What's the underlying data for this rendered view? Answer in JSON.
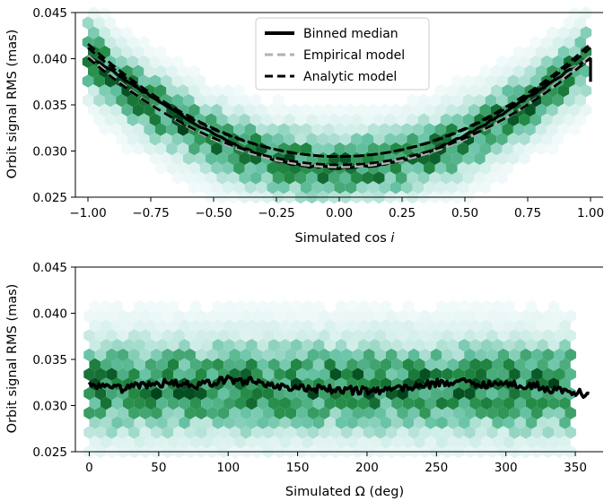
{
  "chart_data": [
    {
      "type": "hexbin",
      "xlabel_prefix": "Simulated cos ",
      "xlabel_var": "i",
      "ylabel": "Orbit signal RMS (mas)",
      "xlim": [
        -1.05,
        1.05
      ],
      "ylim": [
        0.025,
        0.045
      ],
      "xticks": [
        -1.0,
        -0.75,
        -0.5,
        -0.25,
        0.0,
        0.25,
        0.5,
        0.75,
        1.0
      ],
      "xtick_labels": [
        "−1.00",
        "−0.75",
        "−0.50",
        "−0.25",
        "0.00",
        "0.25",
        "0.50",
        "0.75",
        "1.00"
      ],
      "yticks": [
        0.025,
        0.03,
        0.035,
        0.04,
        0.045
      ],
      "ytick_labels": [
        "0.025",
        "0.030",
        "0.035",
        "0.040",
        "0.045"
      ],
      "legend": {
        "placement": "upper-center",
        "entries": [
          {
            "label": "Binned median",
            "style": "solid",
            "color": "#000000"
          },
          {
            "label": "Empirical model",
            "style": "dashed",
            "color": "#b0b0b0"
          },
          {
            "label": "Analytic model",
            "style": "dashed",
            "color": "#000000"
          }
        ]
      },
      "series": [
        {
          "name": "Binned median",
          "x": [
            -1.0,
            -0.9,
            -0.8,
            -0.7,
            -0.6,
            -0.5,
            -0.4,
            -0.3,
            -0.2,
            -0.1,
            0.0,
            0.1,
            0.2,
            0.3,
            0.4,
            0.5,
            0.6,
            0.7,
            0.8,
            0.9,
            1.0
          ],
          "y": [
            0.0403,
            0.0386,
            0.0368,
            0.035,
            0.0334,
            0.0319,
            0.0305,
            0.0294,
            0.0287,
            0.0283,
            0.0282,
            0.0283,
            0.0287,
            0.0294,
            0.0304,
            0.0317,
            0.0332,
            0.0349,
            0.0367,
            0.0385,
            0.04
          ]
        },
        {
          "name": "Empirical model",
          "model": "quadratic",
          "c0": 0.0283,
          "c2": 0.012
        },
        {
          "name": "Analytic model",
          "model": "quadratic-band",
          "center_c0": 0.0294,
          "center_c2": 0.0118,
          "upper_c0": 0.0294,
          "upper_c2": 0.0122,
          "lower_c0": 0.0285,
          "lower_c2": 0.0116
        }
      ],
      "density": {
        "colormap": [
          "#f7fcfd",
          "#ccece6",
          "#66c2a4",
          "#238b45",
          "#00441b"
        ],
        "center_c0": 0.0283,
        "center_c2": 0.012,
        "spread": 0.0025
      }
    },
    {
      "type": "hexbin",
      "xlabel": "Simulated Ω (deg)",
      "ylabel": "Orbit signal RMS (mas)",
      "xlim": [
        -10,
        370
      ],
      "ylim": [
        0.025,
        0.045
      ],
      "xticks": [
        0,
        50,
        100,
        150,
        200,
        250,
        300,
        350
      ],
      "xtick_labels": [
        "0",
        "50",
        "100",
        "150",
        "200",
        "250",
        "300",
        "350"
      ],
      "yticks": [
        0.025,
        0.03,
        0.035,
        0.04,
        0.045
      ],
      "ytick_labels": [
        "0.025",
        "0.030",
        "0.035",
        "0.040",
        "0.045"
      ],
      "series": [
        {
          "name": "Binned median",
          "x": [
            0,
            20,
            40,
            60,
            80,
            100,
            120,
            140,
            160,
            180,
            200,
            220,
            240,
            260,
            280,
            300,
            320,
            340,
            360
          ],
          "y": [
            0.0321,
            0.0318,
            0.0322,
            0.0325,
            0.0322,
            0.0328,
            0.0326,
            0.032,
            0.0318,
            0.0317,
            0.0316,
            0.0318,
            0.0322,
            0.0326,
            0.0324,
            0.0323,
            0.0322,
            0.0315,
            0.0313
          ]
        }
      ],
      "density": {
        "colormap": [
          "#f7fcfd",
          "#ccece6",
          "#66c2a4",
          "#238b45",
          "#00441b"
        ],
        "center": 0.032,
        "spread": 0.0035
      }
    }
  ]
}
